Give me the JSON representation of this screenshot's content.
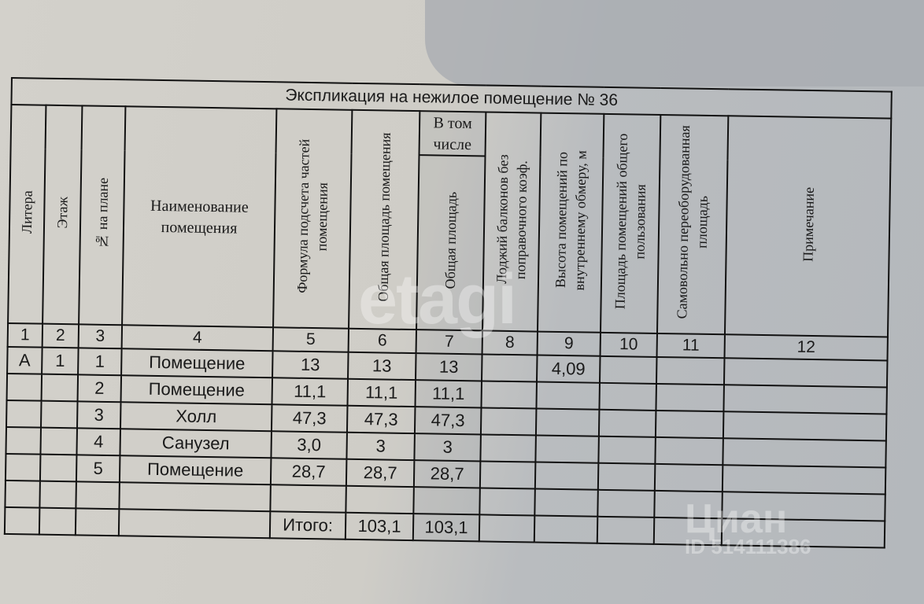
{
  "title": "Экспликация на нежилое помещение  № 36",
  "headers": {
    "litera": "Литера",
    "floor": "Этаж",
    "plan_no": "№ на плане",
    "name": "Наименование помещения",
    "formula": "Формула подсчета частей помещения",
    "total_area": "Общая площадь помещения",
    "including": "В том числе",
    "incl_total": "Общая площадь",
    "loggia": "Лоджий балконов без поправочного коэф.",
    "height": "Высота помещений по внутреннему обмеру, м",
    "common": "Площадь помещений общего пользования",
    "unauth": "Самовольно переоборудованная площадь",
    "note": "Примечание"
  },
  "column_numbers": [
    "1",
    "2",
    "3",
    "4",
    "5",
    "6",
    "7",
    "8",
    "9",
    "10",
    "11",
    "12"
  ],
  "rows": [
    [
      "А",
      "1",
      "1",
      "Помещение",
      "13",
      "13",
      "13",
      "",
      "4,09",
      "",
      "",
      ""
    ],
    [
      "",
      "",
      "2",
      "Помещение",
      "11,1",
      "11,1",
      "11,1",
      "",
      "",
      "",
      "",
      ""
    ],
    [
      "",
      "",
      "3",
      "Холл",
      "47,3",
      "47,3",
      "47,3",
      "",
      "",
      "",
      "",
      ""
    ],
    [
      "",
      "",
      "4",
      "Санузел",
      "3,0",
      "3",
      "3",
      "",
      "",
      "",
      "",
      ""
    ],
    [
      "",
      "",
      "5",
      "Помещение",
      "28,7",
      "28,7",
      "28,7",
      "",
      "",
      "",
      "",
      ""
    ],
    [
      "",
      "",
      "",
      "",
      "",
      "",
      "",
      "",
      "",
      "",
      "",
      ""
    ]
  ],
  "total": {
    "label": "Итого:",
    "total_area": "103,1",
    "incl_total": "103,1"
  },
  "watermarks": {
    "etagi": "etagi",
    "cian": "Циан",
    "cian_id": "ID 514111386"
  }
}
